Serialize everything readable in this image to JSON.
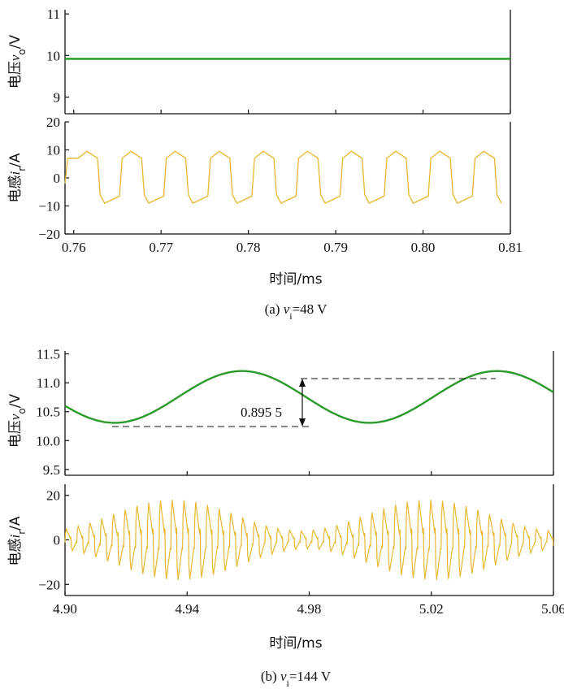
{
  "chart_data": [
    {
      "id": "a",
      "caption_prefix": "(a) ",
      "caption_var": "v",
      "caption_sub": "i",
      "caption_rest": "=48 V",
      "xlabel": "时间/ms",
      "x_ticks": [
        "0.76",
        "0.77",
        "0.78",
        "0.79",
        "0.80",
        "0.81"
      ],
      "xlim": [
        0.759,
        0.81
      ],
      "panels": [
        {
          "type": "line",
          "ylabel_prefix": "电压",
          "ylabel_var": "v",
          "ylabel_sub": "o",
          "ylabel_suffix": "/V",
          "y_ticks": [
            "9",
            "10",
            "11"
          ],
          "ylim": [
            8.6,
            11.1
          ],
          "series": [
            {
              "color": "#1a9a1a",
              "kind": "constant",
              "value": 9.92
            }
          ]
        },
        {
          "type": "line",
          "ylabel_prefix": "电感",
          "ylabel_var": "i",
          "ylabel_sub": "r",
          "ylabel_suffix": "/A",
          "y_ticks": [
            "20",
            "10",
            "0",
            "−10",
            "−20"
          ],
          "ylim": [
            -20,
            20
          ],
          "series": [
            {
              "color": "#e8b830",
              "kind": "square_wave",
              "period_ms": 0.00505,
              "amplitude_high": 9.5,
              "amplitude_low": -9.0,
              "phase_ms": 0.7605
            }
          ]
        }
      ]
    },
    {
      "id": "b",
      "caption_prefix": "(b) ",
      "caption_var": "v",
      "caption_sub": "i",
      "caption_rest": "=144 V",
      "xlabel": "时间/ms",
      "x_ticks": [
        "4.90",
        "4.94",
        "4.98",
        "5.02",
        "5.06"
      ],
      "xlim": [
        4.9,
        5.06
      ],
      "panels": [
        {
          "type": "line",
          "ylabel_prefix": "电压",
          "ylabel_var": "v",
          "ylabel_sub": "o",
          "ylabel_suffix": "/V",
          "y_ticks": [
            "11.5",
            "11.0",
            "10.5",
            "10.0",
            "9.5"
          ],
          "ylim": [
            9.4,
            11.55
          ],
          "annotation": "0.895 5",
          "series": [
            {
              "color": "#2a9a2a",
              "kind": "sine",
              "mean": 10.755,
              "amplitude": 0.4478,
              "period_ms": 0.0835,
              "peak_at_ms": 4.958
            }
          ]
        },
        {
          "type": "line",
          "ylabel_prefix": "电感",
          "ylabel_var": "i",
          "ylabel_sub": "r",
          "ylabel_suffix": "/A",
          "y_ticks": [
            "20",
            "0",
            "−20"
          ],
          "ylim": [
            -25,
            25
          ],
          "series": [
            {
              "color": "#e8b830",
              "kind": "modulated_square",
              "carrier_period_ms": 0.00385,
              "envelope_period_ms": 0.0835,
              "envelope_min": 4,
              "envelope_max": 18,
              "envelope_peak_at_ms": 4.937
            }
          ]
        }
      ]
    }
  ]
}
